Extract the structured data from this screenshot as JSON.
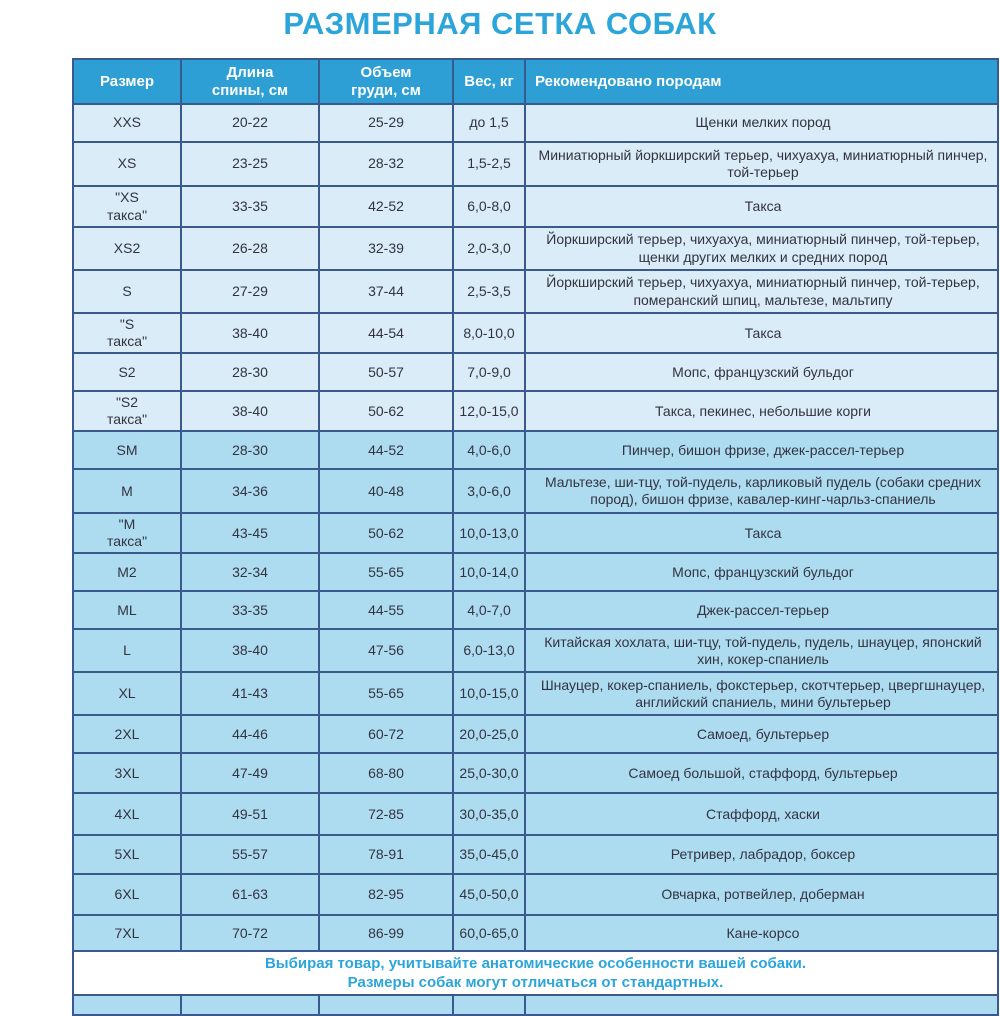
{
  "page": {
    "title": "РАЗМЕРНАЯ СЕТКА СОБАК"
  },
  "colors": {
    "accent_blue": "#2BA5DA",
    "header_bg": "#2D9FD4",
    "border_navy": "#3A5A8E",
    "row_light": "#D9ECF7",
    "row_medium": "#ADDCF1",
    "body_text": "#333340",
    "header_text": "#FFFFFF"
  },
  "table": {
    "headers": [
      "Размер",
      "Длина\nспины, см",
      "Объем\nгруди, см",
      "Вес, кг",
      "Рекомендовано породам"
    ],
    "rows": [
      {
        "size": "XXS",
        "back_length_cm": "20-22",
        "chest_girth_cm": "25-29",
        "weight_kg": "до 1,5",
        "breeds": "Щенки мелких пород"
      },
      {
        "size": "XS",
        "back_length_cm": "23-25",
        "chest_girth_cm": "28-32",
        "weight_kg": "1,5-2,5",
        "breeds": "Миниатюрный йоркширский терьер, чихуахуа, миниатюрный пинчер, той-терьер"
      },
      {
        "size": "\"XS\nтакса\"",
        "back_length_cm": "33-35",
        "chest_girth_cm": "42-52",
        "weight_kg": "6,0-8,0",
        "breeds": "Такса"
      },
      {
        "size": "XS2",
        "back_length_cm": "26-28",
        "chest_girth_cm": "32-39",
        "weight_kg": "2,0-3,0",
        "breeds": "Йоркширский терьер, чихуахуа, миниатюрный пинчер, той-терьер, щенки других мелких и средних пород"
      },
      {
        "size": "S",
        "back_length_cm": "27-29",
        "chest_girth_cm": "37-44",
        "weight_kg": "2,5-3,5",
        "breeds": "Йоркширский терьер, чихуахуа, миниатюрный пинчер, той-терьер, померанский шпиц, мальтезе, мальтипу"
      },
      {
        "size": "\"S\nтакса\"",
        "back_length_cm": "38-40",
        "chest_girth_cm": "44-54",
        "weight_kg": "8,0-10,0",
        "breeds": "Такса"
      },
      {
        "size": "S2",
        "back_length_cm": "28-30",
        "chest_girth_cm": "50-57",
        "weight_kg": "7,0-9,0",
        "breeds": "Мопс, французский бульдог"
      },
      {
        "size": "\"S2\nтакса\"",
        "back_length_cm": "38-40",
        "chest_girth_cm": "50-62",
        "weight_kg": "12,0-15,0",
        "breeds": "Такса, пекинес, небольшие корги"
      },
      {
        "size": "SM",
        "back_length_cm": "28-30",
        "chest_girth_cm": "44-52",
        "weight_kg": "4,0-6,0",
        "breeds": "Пинчер, бишон фризе, джек-рассел-терьер"
      },
      {
        "size": "M",
        "back_length_cm": "34-36",
        "chest_girth_cm": "40-48",
        "weight_kg": "3,0-6,0",
        "breeds": "Мальтезе, ши-тцу, той-пудель, карликовый пудель (собаки средних пород), бишон фризе, кавалер-кинг-чарльз-спаниель"
      },
      {
        "size": "\"M\nтакса\"",
        "back_length_cm": "43-45",
        "chest_girth_cm": "50-62",
        "weight_kg": "10,0-13,0",
        "breeds": "Такса"
      },
      {
        "size": "M2",
        "back_length_cm": "32-34",
        "chest_girth_cm": "55-65",
        "weight_kg": "10,0-14,0",
        "breeds": "Мопс, французский бульдог"
      },
      {
        "size": "ML",
        "back_length_cm": "33-35",
        "chest_girth_cm": "44-55",
        "weight_kg": "4,0-7,0",
        "breeds": "Джек-рассел-терьер"
      },
      {
        "size": "L",
        "back_length_cm": "38-40",
        "chest_girth_cm": "47-56",
        "weight_kg": "6,0-13,0",
        "breeds": "Китайская хохлата, ши-тцу, той-пудель, пудель, шнауцер, японский хин, кокер-спаниель"
      },
      {
        "size": "XL",
        "back_length_cm": "41-43",
        "chest_girth_cm": "55-65",
        "weight_kg": "10,0-15,0",
        "breeds": "Шнауцер, кокер-спаниель, фокстерьер, скотчтерьер, цвергшнауцер, английский спаниель, мини бультерьер"
      },
      {
        "size": "2XL",
        "back_length_cm": "44-46",
        "chest_girth_cm": "60-72",
        "weight_kg": "20,0-25,0",
        "breeds": "Самоед, бультерьер"
      },
      {
        "size": "3XL",
        "back_length_cm": "47-49",
        "chest_girth_cm": "68-80",
        "weight_kg": "25,0-30,0",
        "breeds": "Самоед большой, стаффорд, бультерьер"
      },
      {
        "size": "4XL",
        "back_length_cm": "49-51",
        "chest_girth_cm": "72-85",
        "weight_kg": "30,0-35,0",
        "breeds": "Стаффорд, хаски"
      },
      {
        "size": "5XL",
        "back_length_cm": "55-57",
        "chest_girth_cm": "78-91",
        "weight_kg": "35,0-45,0",
        "breeds": "Ретривер, лабрадор, боксер"
      },
      {
        "size": "6XL",
        "back_length_cm": "61-63",
        "chest_girth_cm": "82-95",
        "weight_kg": "45,0-50,0",
        "breeds": "Овчарка, ротвейлер, доберман"
      },
      {
        "size": "7XL",
        "back_length_cm": "70-72",
        "chest_girth_cm": "86-99",
        "weight_kg": "60,0-65,0",
        "breeds": "Кане-корсо"
      }
    ]
  },
  "footer": {
    "lines": [
      "Выбирая товар, учитывайте анатомические особенности вашей собаки.",
      "Размеры собак могут отличаться от стандартных."
    ]
  }
}
